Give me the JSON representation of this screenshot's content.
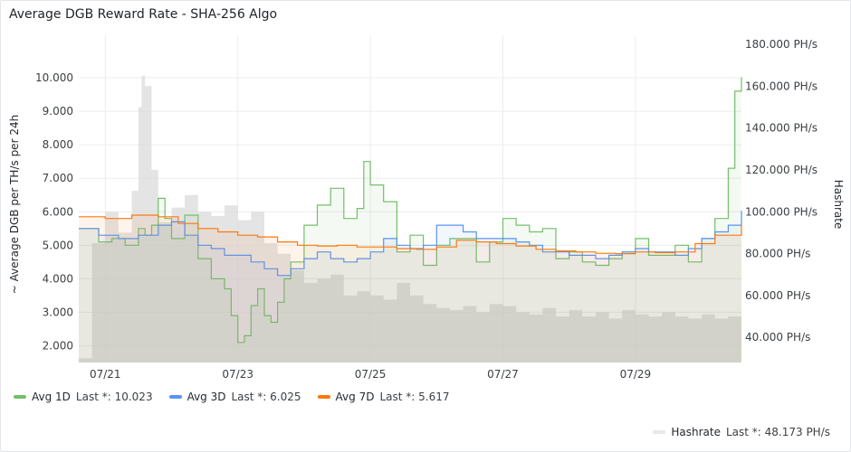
{
  "panel": {
    "title": "Average DGB Reward Rate - SHA-256 Algo"
  },
  "chart_data": {
    "type": "line",
    "title": "Average DGB Reward Rate - SHA-256 Algo",
    "ylabel": "~ Average DGB per TH/s per 24h",
    "y2label": "Hashrate",
    "ylim": [
      1500,
      11000
    ],
    "y2lim": [
      28000,
      180000
    ],
    "y_ticks": [
      "2.000",
      "3.000",
      "4.000",
      "5.000",
      "6.000",
      "7.000",
      "8.000",
      "9.000",
      "10.000"
    ],
    "y_tick_values": [
      2000,
      3000,
      4000,
      5000,
      6000,
      7000,
      8000,
      9000,
      10000
    ],
    "y2_ticks": [
      "40.000 PH/s",
      "60.000 PH/s",
      "80.000 PH/s",
      "100.000 PH/s",
      "120.000 PH/s",
      "140.000 PH/s",
      "160.000 PH/s",
      "180.000 PH/s"
    ],
    "y2_tick_values": [
      40000,
      60000,
      80000,
      100000,
      120000,
      140000,
      160000,
      180000
    ],
    "x_ticks": [
      "07/21",
      "07/23",
      "07/25",
      "07/27",
      "07/29"
    ],
    "x_tick_values": [
      21,
      23,
      25,
      27,
      29
    ],
    "xlim": [
      20.6,
      30.6
    ],
    "grid": true,
    "legend_position": "bottom",
    "series": [
      {
        "name": "Avg 1D",
        "axis": "left",
        "color": "#73bf69",
        "last_label": "Last *: 10.023",
        "x": [
          20.6,
          20.9,
          21.1,
          21.3,
          21.5,
          21.6,
          21.7,
          21.8,
          21.9,
          22.0,
          22.2,
          22.4,
          22.6,
          22.8,
          22.9,
          23.0,
          23.1,
          23.2,
          23.3,
          23.4,
          23.5,
          23.6,
          23.7,
          23.8,
          24.0,
          24.2,
          24.4,
          24.6,
          24.8,
          24.9,
          25.0,
          25.2,
          25.4,
          25.6,
          25.8,
          26.0,
          26.2,
          26.4,
          26.6,
          26.8,
          27.0,
          27.2,
          27.4,
          27.6,
          27.8,
          28.0,
          28.2,
          28.4,
          28.6,
          28.8,
          29.0,
          29.2,
          29.4,
          29.6,
          29.8,
          30.0,
          30.2,
          30.4,
          30.5,
          30.6
        ],
        "y": [
          5500,
          5100,
          5200,
          5000,
          5500,
          5300,
          5600,
          6400,
          5800,
          5200,
          5900,
          4600,
          4000,
          3700,
          2900,
          2100,
          2300,
          3200,
          3700,
          2900,
          2700,
          3300,
          4000,
          4500,
          5600,
          6200,
          6700,
          5800,
          6100,
          7500,
          6800,
          6300,
          4800,
          5300,
          4400,
          5000,
          5200,
          5200,
          4500,
          5100,
          5800,
          5600,
          5400,
          5500,
          4600,
          4800,
          4500,
          4400,
          4600,
          4800,
          5200,
          4700,
          4700,
          5000,
          4500,
          5200,
          5800,
          7300,
          9600,
          10023
        ]
      },
      {
        "name": "Avg 3D",
        "axis": "left",
        "color": "#5794f2",
        "last_label": "Last *: 6.025",
        "x": [
          20.6,
          20.9,
          21.2,
          21.5,
          21.8,
          22.0,
          22.2,
          22.4,
          22.6,
          22.8,
          23.0,
          23.2,
          23.4,
          23.6,
          23.8,
          24.0,
          24.2,
          24.4,
          24.6,
          24.8,
          25.0,
          25.2,
          25.4,
          25.6,
          25.8,
          26.0,
          26.2,
          26.4,
          26.6,
          26.8,
          27.0,
          27.2,
          27.4,
          27.6,
          27.8,
          28.0,
          28.2,
          28.4,
          28.6,
          28.8,
          29.0,
          29.2,
          29.4,
          29.6,
          29.8,
          30.0,
          30.2,
          30.4,
          30.6
        ],
        "y": [
          5500,
          5300,
          5200,
          5300,
          5600,
          5700,
          5300,
          5000,
          4900,
          4700,
          4700,
          4500,
          4300,
          4100,
          4300,
          4600,
          4800,
          4600,
          4500,
          4600,
          4800,
          5200,
          5000,
          4900,
          5000,
          5600,
          5600,
          5400,
          5200,
          5200,
          5200,
          5100,
          5000,
          4800,
          4800,
          4700,
          4700,
          4600,
          4700,
          4800,
          4900,
          4800,
          4800,
          4700,
          4900,
          5200,
          5400,
          5600,
          6025
        ]
      },
      {
        "name": "Avg 7D",
        "axis": "left",
        "color": "#ff780a",
        "last_label": "Last *: 5.617",
        "x": [
          20.6,
          21.0,
          21.4,
          21.8,
          22.1,
          22.4,
          22.7,
          23.0,
          23.3,
          23.6,
          23.9,
          24.2,
          24.5,
          24.8,
          25.1,
          25.4,
          25.7,
          26.0,
          26.3,
          26.6,
          26.9,
          27.2,
          27.5,
          27.8,
          28.1,
          28.4,
          28.7,
          29.0,
          29.3,
          29.6,
          29.9,
          30.2,
          30.6
        ],
        "y": [
          5850,
          5800,
          5900,
          5850,
          5650,
          5500,
          5400,
          5300,
          5250,
          5100,
          5000,
          4980,
          5000,
          4950,
          4950,
          4900,
          4880,
          4950,
          5150,
          5100,
          5050,
          4980,
          4880,
          4830,
          4800,
          4760,
          4750,
          4800,
          4780,
          4800,
          5050,
          5300,
          5617
        ]
      },
      {
        "name": "Hashrate",
        "axis": "right",
        "color": "#c4c4c4",
        "last_label": "Last *: 48.173 PH/s",
        "x": [
          20.6,
          20.8,
          21.0,
          21.2,
          21.4,
          21.5,
          21.55,
          21.6,
          21.7,
          21.8,
          22.0,
          22.2,
          22.4,
          22.6,
          22.8,
          23.0,
          23.2,
          23.4,
          23.6,
          23.8,
          24.0,
          24.2,
          24.4,
          24.6,
          24.8,
          25.0,
          25.2,
          25.4,
          25.6,
          25.8,
          26.0,
          26.2,
          26.4,
          26.6,
          26.8,
          27.0,
          27.2,
          27.4,
          27.6,
          27.8,
          28.0,
          28.2,
          28.4,
          28.6,
          28.8,
          29.0,
          29.2,
          29.4,
          29.6,
          29.8,
          30.0,
          30.2,
          30.4,
          30.6
        ],
        "y": [
          30000,
          85000,
          100000,
          90000,
          110000,
          150000,
          165000,
          160000,
          120000,
          95000,
          102000,
          108000,
          100000,
          98000,
          103000,
          96000,
          100000,
          85000,
          80000,
          72000,
          66000,
          68000,
          70000,
          60000,
          62000,
          60000,
          58000,
          66000,
          60000,
          56000,
          54000,
          53000,
          55000,
          52000,
          56000,
          55000,
          52000,
          51000,
          54000,
          50000,
          53000,
          50000,
          52000,
          49000,
          53000,
          51000,
          50000,
          52000,
          50000,
          49000,
          51000,
          49000,
          50000,
          48173
        ]
      }
    ]
  }
}
